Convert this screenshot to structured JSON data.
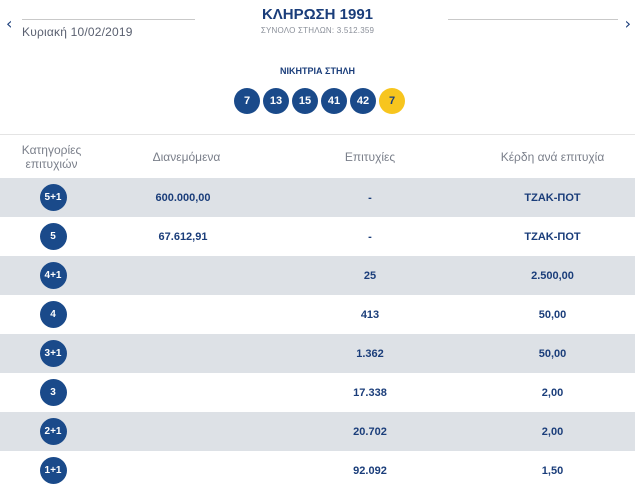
{
  "header": {
    "prev_icon": "chevron-left-icon",
    "next_icon": "chevron-right-icon",
    "prev_glyph": "‹",
    "next_glyph": "›",
    "date": "Κυριακή 10/02/2019",
    "title": "ΚΛΗΡΩΣΗ 1991",
    "columns_total": "ΣΥΝΟΛΟ ΣΤΗΛΩΝ: 3.512.359"
  },
  "winning": {
    "label": "ΝΙΚΗΤΡΙΑ ΣΤΗΛΗ",
    "numbers": [
      "7",
      "13",
      "15",
      "41",
      "42"
    ],
    "bonus": "7"
  },
  "table": {
    "headers": {
      "category_line1": "Κατηγορίες",
      "category_line2": "επιτυχιών",
      "distributed": "Διανεμόμενα",
      "winners": "Επιτυχίες",
      "prize_per_winner": "Κέρδη ανά επιτυχία"
    },
    "rows": [
      {
        "category": "5+1",
        "distributed": "600.000,00",
        "winners": "-",
        "prize": "ΤΖΑΚ-ΠΟΤ"
      },
      {
        "category": "5",
        "distributed": "67.612,91",
        "winners": "-",
        "prize": "ΤΖΑΚ-ΠΟΤ"
      },
      {
        "category": "4+1",
        "distributed": "",
        "winners": "25",
        "prize": "2.500,00"
      },
      {
        "category": "4",
        "distributed": "",
        "winners": "413",
        "prize": "50,00"
      },
      {
        "category": "3+1",
        "distributed": "",
        "winners": "1.362",
        "prize": "50,00"
      },
      {
        "category": "3",
        "distributed": "",
        "winners": "17.338",
        "prize": "2,00"
      },
      {
        "category": "2+1",
        "distributed": "",
        "winners": "20.702",
        "prize": "2,00"
      },
      {
        "category": "1+1",
        "distributed": "",
        "winners": "92.092",
        "prize": "1,50"
      }
    ]
  },
  "colors": {
    "primary": "#1a3d7a",
    "ball": "#1a4a8a",
    "bonus_ball": "#f7c51e",
    "row_shade": "#dde1e6"
  }
}
